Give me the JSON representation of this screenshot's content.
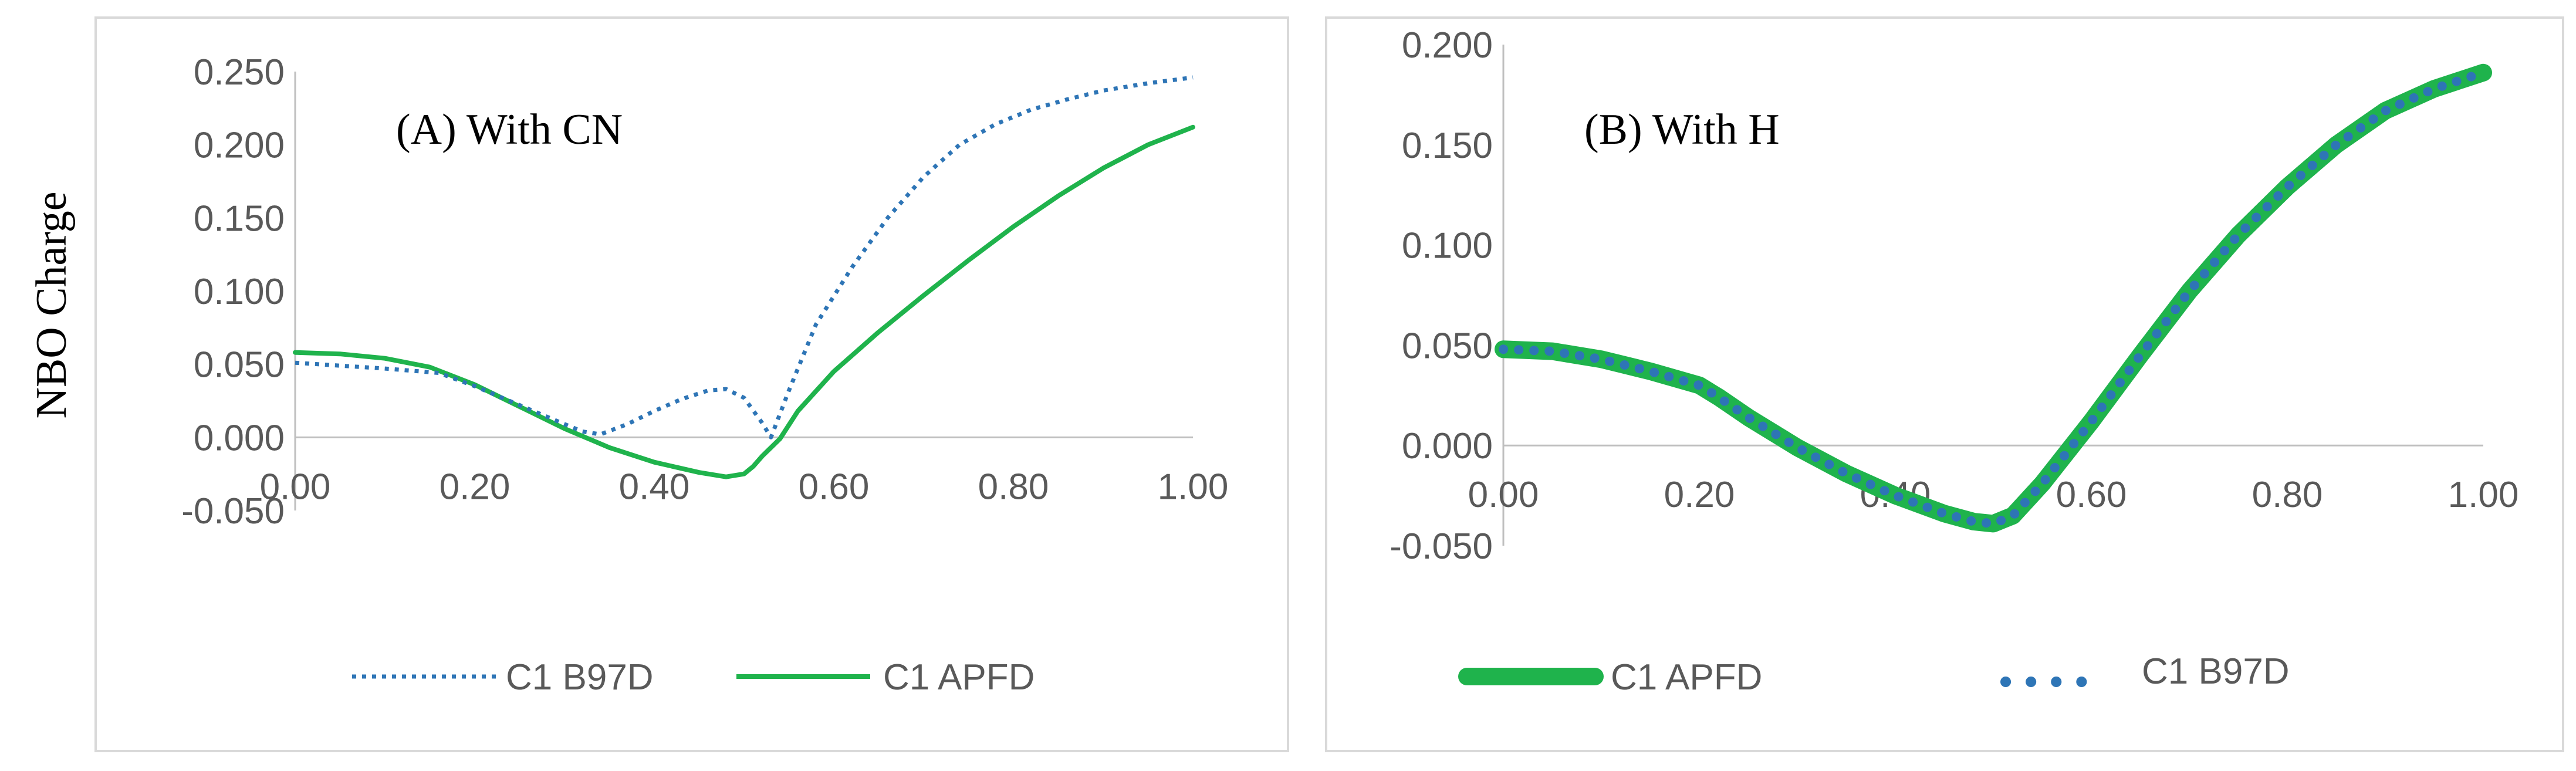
{
  "y_axis_label": "NBO Charge",
  "colors": {
    "b97d": "#2e75b6",
    "apfd": "#1fb34c",
    "axis": "#bfbfbf",
    "frame": "#d9d9d9"
  },
  "chart_data": [
    {
      "type": "line",
      "annotation": "(A)  With CN",
      "xlim": [
        0,
        1
      ],
      "ylim": [
        -0.05,
        0.25
      ],
      "x_ticks": [
        "0.00",
        "0.20",
        "0.40",
        "0.60",
        "0.80",
        "1.00"
      ],
      "y_ticks": [
        "0.250",
        "0.200",
        "0.150",
        "0.100",
        "0.050",
        "0.000",
        "-0.050"
      ],
      "legend_position": "bottom",
      "series": [
        {
          "name": "C1 B97D",
          "style": "dotted",
          "x": [
            0.0,
            0.05,
            0.1,
            0.16,
            0.2,
            0.25,
            0.3,
            0.32,
            0.34,
            0.37,
            0.4,
            0.43,
            0.46,
            0.48,
            0.5,
            0.52,
            0.53,
            0.55,
            0.58,
            0.62,
            0.66,
            0.7,
            0.74,
            0.78,
            0.82,
            0.86,
            0.9,
            0.95,
            1.0
          ],
          "y": [
            0.051,
            0.049,
            0.047,
            0.044,
            0.035,
            0.022,
            0.009,
            0.004,
            0.002,
            0.009,
            0.018,
            0.026,
            0.032,
            0.033,
            0.027,
            0.01,
            0.0,
            0.032,
            0.077,
            0.116,
            0.15,
            0.178,
            0.2,
            0.214,
            0.224,
            0.231,
            0.237,
            0.242,
            0.246
          ]
        },
        {
          "name": "C1 APFD",
          "style": "solid",
          "x": [
            0.0,
            0.05,
            0.1,
            0.15,
            0.2,
            0.25,
            0.3,
            0.35,
            0.4,
            0.45,
            0.48,
            0.5,
            0.51,
            0.52,
            0.54,
            0.56,
            0.6,
            0.65,
            0.7,
            0.75,
            0.8,
            0.85,
            0.9,
            0.95,
            1.0
          ],
          "y": [
            0.058,
            0.057,
            0.054,
            0.048,
            0.036,
            0.021,
            0.006,
            -0.007,
            -0.017,
            -0.024,
            -0.027,
            -0.025,
            -0.02,
            -0.013,
            -0.001,
            0.018,
            0.045,
            0.072,
            0.097,
            0.121,
            0.144,
            0.165,
            0.184,
            0.2,
            0.212
          ]
        }
      ]
    },
    {
      "type": "line",
      "annotation": "(B)  With H",
      "xlim": [
        0,
        1
      ],
      "ylim": [
        -0.05,
        0.2
      ],
      "x_ticks": [
        "0.00",
        "0.20",
        "0.40",
        "0.60",
        "0.80",
        "1.00"
      ],
      "y_ticks": [
        "0.200",
        "0.150",
        "0.100",
        "0.050",
        "0.000",
        "-0.050"
      ],
      "legend_position": "bottom",
      "series": [
        {
          "name": "C1 APFD",
          "style": "thick-solid",
          "x": [
            0.0,
            0.05,
            0.1,
            0.15,
            0.2,
            0.22,
            0.25,
            0.3,
            0.35,
            0.4,
            0.45,
            0.48,
            0.5,
            0.52,
            0.55,
            0.6,
            0.65,
            0.7,
            0.75,
            0.8,
            0.85,
            0.9,
            0.95,
            1.0
          ],
          "y": [
            0.048,
            0.047,
            0.043,
            0.037,
            0.03,
            0.024,
            0.014,
            -0.001,
            -0.014,
            -0.025,
            -0.034,
            -0.038,
            -0.039,
            -0.035,
            -0.019,
            0.012,
            0.045,
            0.077,
            0.105,
            0.129,
            0.15,
            0.167,
            0.178,
            0.186
          ]
        },
        {
          "name": "C1 B97D",
          "style": "dotted",
          "x": [
            0.0,
            0.05,
            0.1,
            0.15,
            0.2,
            0.22,
            0.25,
            0.3,
            0.35,
            0.4,
            0.45,
            0.48,
            0.5,
            0.52,
            0.55,
            0.6,
            0.65,
            0.7,
            0.75,
            0.8,
            0.85,
            0.9,
            0.95,
            1.0
          ],
          "y": [
            0.048,
            0.047,
            0.043,
            0.037,
            0.03,
            0.024,
            0.014,
            -0.001,
            -0.014,
            -0.025,
            -0.034,
            -0.038,
            -0.039,
            -0.035,
            -0.019,
            0.012,
            0.045,
            0.077,
            0.105,
            0.129,
            0.15,
            0.167,
            0.178,
            0.186
          ]
        }
      ]
    }
  ]
}
